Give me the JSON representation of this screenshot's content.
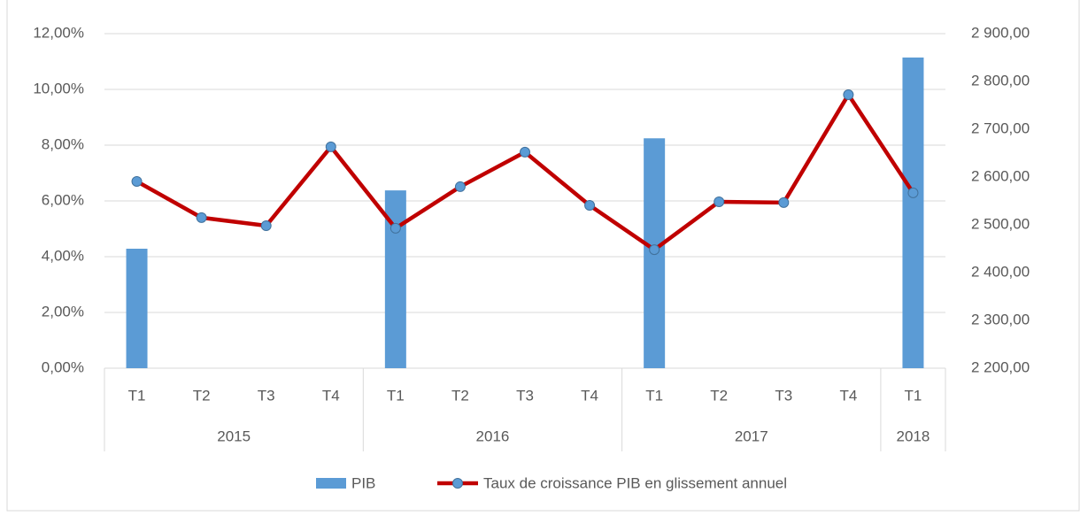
{
  "chart_data": {
    "type": "combo",
    "categories": [
      "T1",
      "T2",
      "T3",
      "T4",
      "T1",
      "T2",
      "T3",
      "T4",
      "T1",
      "T2",
      "T3",
      "T4",
      "T1"
    ],
    "x_groups": [
      "2015",
      "2015",
      "2015",
      "2015",
      "2016",
      "2016",
      "2016",
      "2016",
      "2017",
      "2017",
      "2017",
      "2017",
      "2018"
    ],
    "series": [
      {
        "name": "PIB",
        "type": "bar",
        "axis": "y2",
        "color": "#5b9bd5",
        "values": [
          2450,
          null,
          null,
          null,
          2572,
          null,
          null,
          null,
          2681,
          null,
          null,
          null,
          2850
        ]
      },
      {
        "name": "Taux de croissance PIB en glissement annuel",
        "type": "line",
        "axis": "y",
        "color": "#c00000",
        "marker_color": "#5b9bd5",
        "values": [
          6.7,
          5.4,
          5.11,
          7.94,
          5.02,
          6.51,
          7.75,
          5.84,
          4.25,
          5.97,
          5.94,
          9.81,
          6.29
        ]
      }
    ],
    "ylim": [
      0,
      12
    ],
    "yticks": [
      {
        "value": 0,
        "label": "0,00%"
      },
      {
        "value": 2,
        "label": "2,00%"
      },
      {
        "value": 4,
        "label": "4,00%"
      },
      {
        "value": 6,
        "label": "6,00%"
      },
      {
        "value": 8,
        "label": "8,00%"
      },
      {
        "value": 10,
        "label": "10,00%"
      },
      {
        "value": 12,
        "label": "12,00%"
      }
    ],
    "y2lim": [
      2200,
      2900
    ],
    "y2ticks": [
      {
        "value": 2200,
        "label": "2 200,00"
      },
      {
        "value": 2300,
        "label": "2 300,00"
      },
      {
        "value": 2400,
        "label": "2 400,00"
      },
      {
        "value": 2500,
        "label": "2 500,00"
      },
      {
        "value": 2600,
        "label": "2 600,00"
      },
      {
        "value": 2700,
        "label": "2 700,00"
      },
      {
        "value": 2800,
        "label": "2 800,00"
      },
      {
        "value": 2900,
        "label": "2 900,00"
      }
    ],
    "grid": true,
    "legend": "bottom"
  }
}
